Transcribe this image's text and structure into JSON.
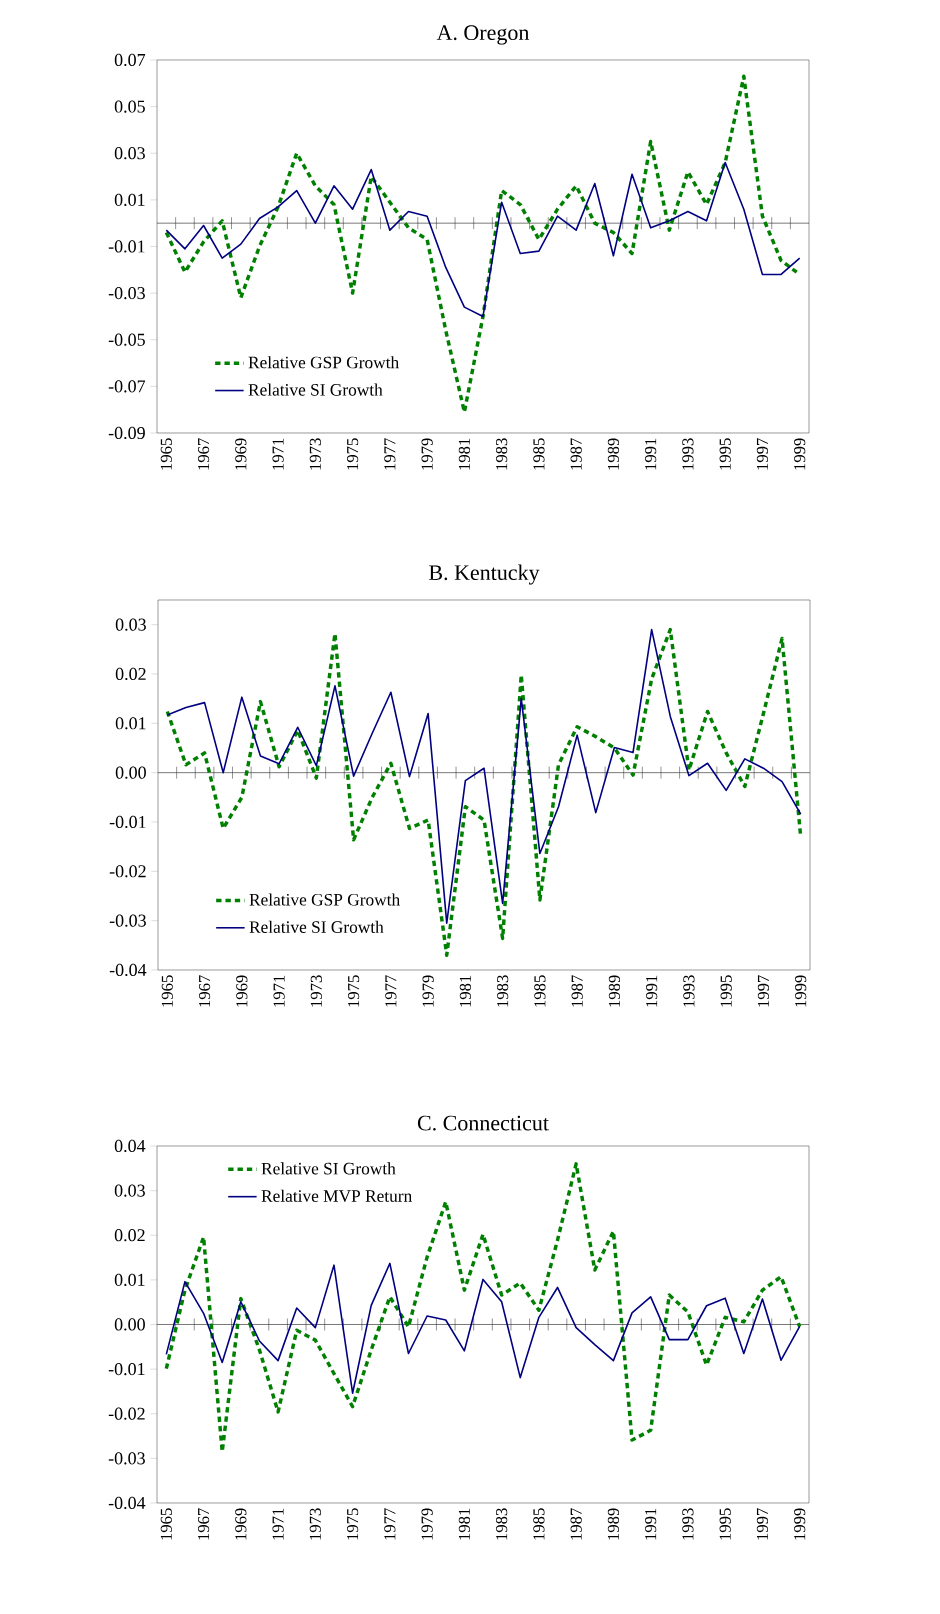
{
  "chart_data": [
    {
      "type": "line",
      "title": "A. Oregon",
      "categories": [
        "1965",
        null,
        "1967",
        null,
        "1969",
        null,
        "1971",
        null,
        "1973",
        null,
        "1975",
        null,
        "1977",
        null,
        "1979",
        null,
        "1981",
        null,
        "1983",
        null,
        "1985",
        null,
        "1987",
        null,
        "1989",
        null,
        "1991",
        null,
        "1993",
        null,
        "1995",
        null,
        "1997",
        null,
        "1999"
      ],
      "series": [
        {
          "name": "Relative GSP Growth",
          "color": "#008000",
          "line_style": "dashed",
          "values": [
            -0.004,
            -0.021,
            -0.008,
            0.001,
            -0.032,
            -0.01,
            0.007,
            0.03,
            0.016,
            0.008,
            -0.03,
            0.02,
            0.009,
            -0.002,
            -0.007,
            -0.046,
            -0.081,
            -0.04,
            0.014,
            0.008,
            -0.007,
            0.006,
            0.016,
            0.0,
            -0.004,
            -0.013,
            0.035,
            -0.003,
            0.022,
            0.008,
            0.026,
            0.063,
            0.003,
            -0.016,
            -0.022
          ]
        },
        {
          "name": "Relative SI Growth",
          "color": "#000080",
          "line_style": "solid",
          "values": [
            -0.003,
            -0.011,
            -0.001,
            -0.015,
            -0.009,
            0.002,
            0.007,
            0.014,
            0.0,
            0.016,
            0.006,
            0.023,
            -0.003,
            0.005,
            0.003,
            -0.019,
            -0.036,
            -0.04,
            0.009,
            -0.013,
            -0.012,
            0.003,
            -0.003,
            0.017,
            -0.014,
            0.021,
            -0.002,
            0.001,
            0.005,
            0.001,
            0.026,
            0.006,
            -0.022,
            -0.022,
            -0.015
          ]
        }
      ],
      "ylim": [
        -0.09,
        0.07
      ],
      "yticks": [
        -0.09,
        -0.07,
        -0.05,
        -0.03,
        -0.01,
        0.01,
        0.03,
        0.05,
        0.07
      ],
      "legend": "bottom left"
    },
    {
      "type": "line",
      "title": "B. Kentucky",
      "categories": [
        "1965",
        null,
        "1967",
        null,
        "1969",
        null,
        "1971",
        null,
        "1973",
        null,
        "1975",
        null,
        "1977",
        null,
        "1979",
        null,
        "1981",
        null,
        "1983",
        null,
        "1985",
        null,
        "1987",
        null,
        "1989",
        null,
        "1991",
        null,
        "1993",
        null,
        "1995",
        null,
        "1997",
        null,
        "1999"
      ],
      "series": [
        {
          "name": "Relative GSP Growth",
          "color": "#008000",
          "line_style": "dashed",
          "values": [
            0.0124,
            0.0016,
            0.004,
            -0.0113,
            -0.005,
            0.0144,
            0.0012,
            0.0086,
            -0.0011,
            0.0282,
            -0.0136,
            -0.005,
            0.0019,
            -0.0113,
            -0.0096,
            -0.037,
            -0.0069,
            -0.0096,
            -0.0336,
            0.0198,
            -0.0258,
            0.0016,
            0.0093,
            0.0073,
            0.005,
            -0.0005,
            0.019,
            0.029,
            0.0005,
            0.0124,
            0.004,
            -0.0028,
            0.012,
            0.0272,
            -0.013
          ]
        },
        {
          "name": "Relative SI Growth",
          "color": "#000080",
          "line_style": "solid",
          "values": [
            0.0117,
            0.0132,
            0.0142,
            0.0,
            0.0153,
            0.0034,
            0.0018,
            0.0092,
            0.0014,
            0.0176,
            -0.0007,
            0.008,
            0.0163,
            -0.0008,
            0.012,
            -0.0305,
            -0.0016,
            0.0009,
            -0.0265,
            0.015,
            -0.0164,
            -0.0069,
            0.0076,
            -0.0081,
            0.0051,
            0.0041,
            0.029,
            0.0114,
            -0.0006,
            0.0019,
            -0.0036,
            0.0028,
            0.0009,
            -0.0018,
            -0.0084
          ]
        }
      ],
      "ylim": [
        -0.04,
        0.035
      ],
      "yticks": [
        -0.04,
        -0.03,
        -0.02,
        -0.01,
        {
          "value": 0,
          "label": "0.00"
        },
        0.01,
        0.02,
        0.03
      ],
      "legend": "bottom left"
    },
    {
      "type": "line",
      "title": "C. Connecticut",
      "categories": [
        "1965",
        null,
        "1967",
        null,
        "1969",
        null,
        "1971",
        null,
        "1973",
        null,
        "1975",
        null,
        "1977",
        null,
        "1979",
        null,
        "1981",
        null,
        "1983",
        null,
        "1985",
        null,
        "1987",
        null,
        "1989",
        null,
        "1991",
        null,
        "1993",
        null,
        "1995",
        null,
        "1997",
        null,
        "1999"
      ],
      "series": [
        {
          "name": "Relative SI Growth",
          "color": "#008000",
          "line_style": "dashed",
          "values": [
            -0.0099,
            0.0077,
            0.0196,
            -0.0285,
            0.0058,
            -0.0057,
            -0.0196,
            -0.0013,
            -0.0035,
            -0.011,
            -0.0184,
            -0.0057,
            0.0062,
            -0.0005,
            0.0151,
            0.0275,
            0.0077,
            0.0202,
            0.0066,
            0.0093,
            0.0032,
            0.0189,
            0.036,
            0.0122,
            0.0209,
            -0.0259,
            -0.0237,
            0.0066,
            0.0028,
            -0.0091,
            0.0016,
            0.0006,
            0.0077,
            0.0107,
            -0.0005
          ]
        },
        {
          "name": "Relative MVP Return",
          "color": "#000080",
          "line_style": "solid",
          "values": [
            -0.0067,
            0.0096,
            0.0025,
            -0.0085,
            0.0051,
            -0.0037,
            -0.0081,
            0.0037,
            -0.0007,
            0.0133,
            -0.0154,
            0.0043,
            0.0137,
            -0.0065,
            0.0019,
            0.001,
            -0.0059,
            0.0101,
            0.0051,
            -0.0119,
            0.0016,
            0.0083,
            -0.0007,
            -0.0045,
            -0.0081,
            0.0026,
            0.0062,
            -0.0034,
            -0.0034,
            0.0042,
            0.0059,
            -0.0065,
            0.0057,
            -0.008,
            -0.0004
          ]
        }
      ],
      "ylim": [
        -0.04,
        0.04
      ],
      "yticks": [
        -0.04,
        -0.03,
        -0.02,
        -0.01,
        {
          "value": 0,
          "label": "0.00"
        },
        0.01,
        0.02,
        0.03,
        0.04
      ],
      "legend": "top left"
    }
  ]
}
